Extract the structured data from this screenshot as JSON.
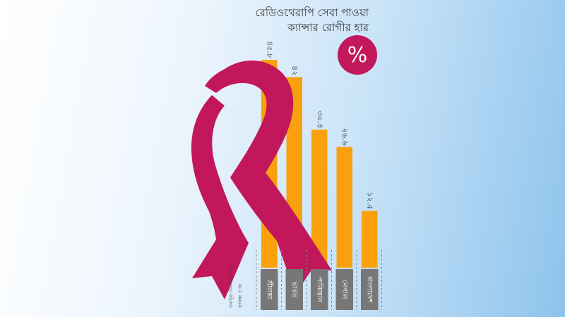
{
  "title": {
    "line1": "রেডিওথেরাপি সেবা পাওয়া",
    "line2": "ক্যান্সার রোগীর হার"
  },
  "unit_badge": "%",
  "source_credit": {
    "line1": "তথ্যসূত্র: বিএসএমএমইউ",
    "line2": "গ্রাফিক্স: প্র আ"
  },
  "colors": {
    "bar": "#f9a10d",
    "ribbon": "#c2185b",
    "label_box": "#777777",
    "badge": "#c2185b"
  },
  "icons": [
    "awareness-ribbon-icon",
    "percent-badge-icon"
  ],
  "chart_data": {
    "type": "bar",
    "title": "রেডিওথেরাপি সেবা পাওয়া ক্যান্সার রোগীর হার",
    "unit": "%",
    "categories": [
      "শ্রীলঙ্কা",
      "ভারত",
      "পাকিস্তান",
      "নেপাল",
      "বাংলাদেশ"
    ],
    "values": [
      45.8,
      42,
      30.4,
      26.6,
      12.5
    ],
    "value_labels": [
      "৪৫.৮",
      "৪২",
      "৩০.৪",
      "২৬.৬",
      "১২.৫"
    ],
    "ylim": [
      0,
      52
    ],
    "grid": false,
    "legend": "none"
  }
}
